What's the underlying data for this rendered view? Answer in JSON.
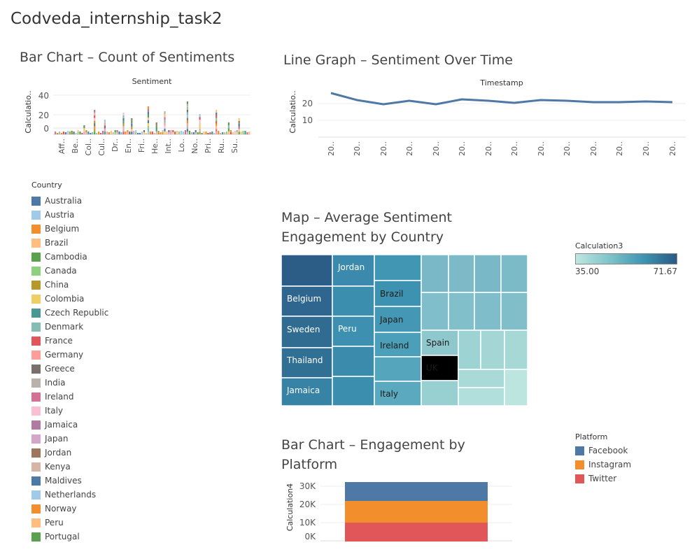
{
  "dashboard": {
    "title": "Codveda_internship_task2"
  },
  "sheets": {
    "bar_sentiment": {
      "title": "Bar Chart – Count of Sentiments",
      "header": "Sentiment",
      "ylabel": "Calculatio..",
      "yticks": [
        "40",
        "20",
        "0"
      ],
      "xticks": [
        "Aff..",
        "Be..",
        "Col..",
        "Cul..",
        "Dr..",
        "En..",
        "Fri..",
        "He..",
        "Int..",
        "Lo..",
        "No..",
        "Pri..",
        "Ru..",
        "Su.."
      ]
    },
    "line_time": {
      "title": "Line Graph – Sentiment Over Time",
      "header": "Timestamp",
      "ylabel": "Calculatio..",
      "yticks": [
        "20",
        "10"
      ]
    },
    "map_country": {
      "title": "Map – Average Sentiment Engagement by Country",
      "labels": [
        "Jordan",
        "Belgium",
        "Sweden",
        "Thailand",
        "Jamaica",
        "Peru",
        "Brazil",
        "Japan",
        "Ireland",
        "Italy",
        "Spain",
        "UK"
      ]
    },
    "bar_platform": {
      "title": "Bar Chart – Engagement by Platform",
      "ylabel": "Calculation4",
      "yticks": [
        "30K",
        "20K",
        "10K",
        "0K"
      ]
    }
  },
  "legends": {
    "country": {
      "title": "Country",
      "items": [
        {
          "label": "Australia",
          "color": "#4e79a7"
        },
        {
          "label": "Austria",
          "color": "#a0cbe8"
        },
        {
          "label": "Belgium",
          "color": "#f28e2b"
        },
        {
          "label": "Brazil",
          "color": "#ffbe7d"
        },
        {
          "label": "Cambodia",
          "color": "#59a14f"
        },
        {
          "label": "Canada",
          "color": "#8cd17d"
        },
        {
          "label": "China",
          "color": "#b6992d"
        },
        {
          "label": "Colombia",
          "color": "#f1ce63"
        },
        {
          "label": "Czech Republic",
          "color": "#499894"
        },
        {
          "label": "Denmark",
          "color": "#86bcb6"
        },
        {
          "label": "France",
          "color": "#e15759"
        },
        {
          "label": "Germany",
          "color": "#ff9d9a"
        },
        {
          "label": "Greece",
          "color": "#79706e"
        },
        {
          "label": "India",
          "color": "#bab0ac"
        },
        {
          "label": "Ireland",
          "color": "#d37295"
        },
        {
          "label": "Italy",
          "color": "#fabfd2"
        },
        {
          "label": "Jamaica",
          "color": "#b07aa1"
        },
        {
          "label": "Japan",
          "color": "#d4a6c8"
        },
        {
          "label": "Jordan",
          "color": "#9d7660"
        },
        {
          "label": "Kenya",
          "color": "#d7b5a6"
        },
        {
          "label": "Maldives",
          "color": "#4e79a7"
        },
        {
          "label": "Netherlands",
          "color": "#a0cbe8"
        },
        {
          "label": "Norway",
          "color": "#f28e2b"
        },
        {
          "label": "Peru",
          "color": "#ffbe7d"
        },
        {
          "label": "Portugal",
          "color": "#59a14f"
        },
        {
          "label": "",
          "color": "#8cd17d"
        }
      ]
    },
    "platform": {
      "title": "Platform",
      "items": [
        {
          "label": "Facebook",
          "color": "#4e79a7"
        },
        {
          "label": "Instagram",
          "color": "#f28e2b"
        },
        {
          "label": "Twitter",
          "color": "#e15759"
        }
      ]
    },
    "calculation3": {
      "title": "Calculation3",
      "min": "35.00",
      "max": "71.67"
    }
  }
}
